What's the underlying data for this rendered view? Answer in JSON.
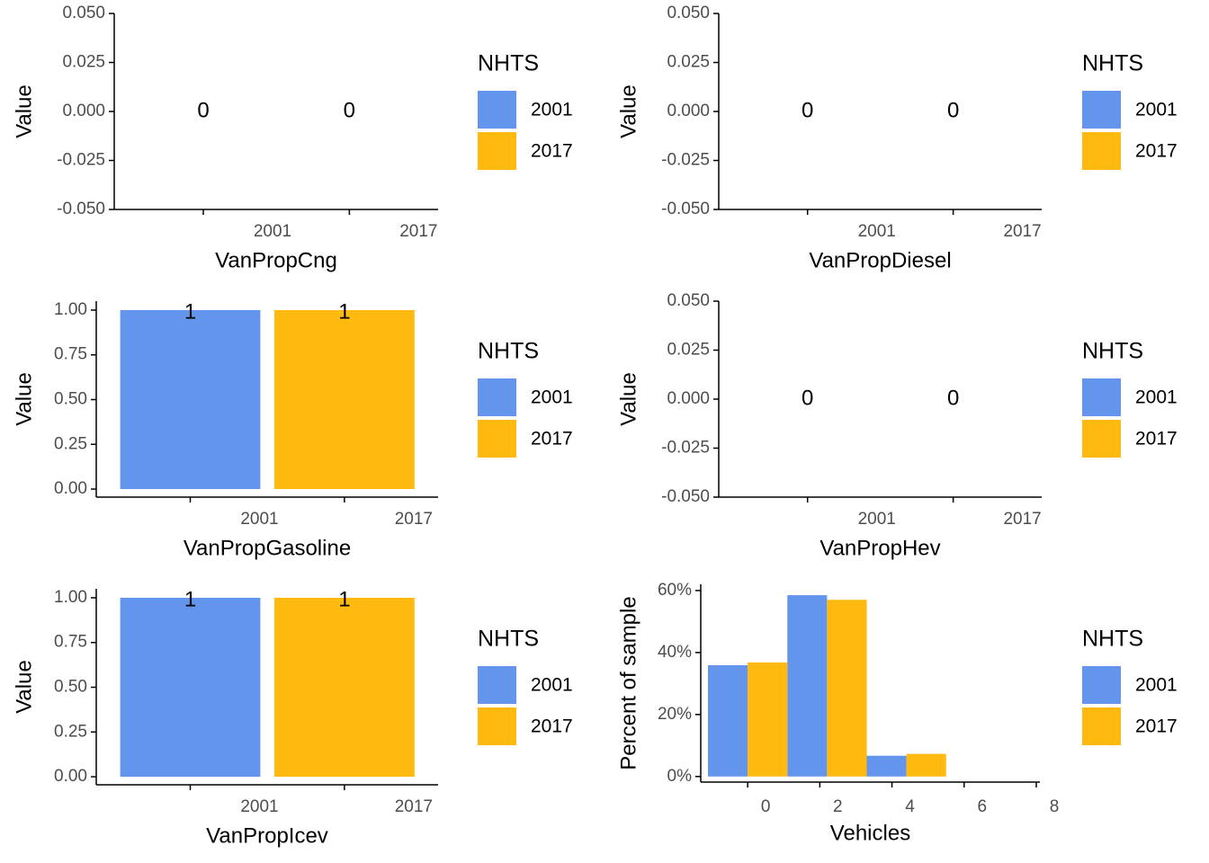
{
  "chart_data": [
    {
      "type": "bar",
      "x_label": "VanPropCng",
      "y_label": "Value",
      "legend_title": "NHTS",
      "categories": [
        "2001",
        "2017"
      ],
      "values": [
        0,
        0
      ],
      "colors": [
        "#6495ed",
        "#ffb90f"
      ],
      "ylim": [
        -0.05,
        0.05
      ],
      "yticks": [
        {
          "value": -0.05,
          "label": "-0.050"
        },
        {
          "value": -0.025,
          "label": "-0.025"
        },
        {
          "value": 0,
          "label": "0.000"
        },
        {
          "value": 0.025,
          "label": "0.025"
        },
        {
          "value": 0.05,
          "label": "0.050"
        }
      ]
    },
    {
      "type": "bar",
      "x_label": "VanPropDiesel",
      "y_label": "Value",
      "legend_title": "NHTS",
      "categories": [
        "2001",
        "2017"
      ],
      "values": [
        0,
        0
      ],
      "colors": [
        "#6495ed",
        "#ffb90f"
      ],
      "ylim": [
        -0.05,
        0.05
      ],
      "yticks": [
        {
          "value": -0.05,
          "label": "-0.050"
        },
        {
          "value": -0.025,
          "label": "-0.025"
        },
        {
          "value": 0,
          "label": "0.000"
        },
        {
          "value": 0.025,
          "label": "0.025"
        },
        {
          "value": 0.05,
          "label": "0.050"
        }
      ]
    },
    {
      "type": "bar",
      "x_label": "VanPropGasoline",
      "y_label": "Value",
      "legend_title": "NHTS",
      "categories": [
        "2001",
        "2017"
      ],
      "values": [
        1,
        1
      ],
      "colors": [
        "#6495ed",
        "#ffb90f"
      ],
      "ylim": [
        -0.045,
        1.05
      ],
      "yticks": [
        {
          "value": 0,
          "label": "0.00"
        },
        {
          "value": 0.25,
          "label": "0.25"
        },
        {
          "value": 0.5,
          "label": "0.50"
        },
        {
          "value": 0.75,
          "label": "0.75"
        },
        {
          "value": 1,
          "label": "1.00"
        }
      ]
    },
    {
      "type": "bar",
      "x_label": "VanPropHev",
      "y_label": "Value",
      "legend_title": "NHTS",
      "categories": [
        "2001",
        "2017"
      ],
      "values": [
        0,
        0
      ],
      "colors": [
        "#6495ed",
        "#ffb90f"
      ],
      "ylim": [
        -0.05,
        0.05
      ],
      "yticks": [
        {
          "value": -0.05,
          "label": "-0.050"
        },
        {
          "value": -0.025,
          "label": "-0.025"
        },
        {
          "value": 0,
          "label": "0.000"
        },
        {
          "value": 0.025,
          "label": "0.025"
        },
        {
          "value": 0.05,
          "label": "0.050"
        }
      ]
    },
    {
      "type": "bar",
      "x_label": "VanPropIcev",
      "y_label": "Value",
      "legend_title": "NHTS",
      "categories": [
        "2001",
        "2017"
      ],
      "values": [
        1,
        1
      ],
      "colors": [
        "#6495ed",
        "#ffb90f"
      ],
      "ylim": [
        -0.045,
        1.05
      ],
      "yticks": [
        {
          "value": 0,
          "label": "0.00"
        },
        {
          "value": 0.25,
          "label": "0.25"
        },
        {
          "value": 0.5,
          "label": "0.50"
        },
        {
          "value": 0.75,
          "label": "0.75"
        },
        {
          "value": 1,
          "label": "1.00"
        }
      ]
    },
    {
      "type": "histogram",
      "x_label": "Vehicles",
      "y_label": "Percent of sample",
      "legend_title": "NHTS",
      "bins": [
        -1.1,
        1.1,
        3.3,
        5.5
      ],
      "series": [
        {
          "name": "2001",
          "color": "#6495ed",
          "values": [
            35.9,
            58.5,
            6.7
          ]
        },
        {
          "name": "2017",
          "color": "#ffb90f",
          "values": [
            36.8,
            57.0,
            7.3
          ]
        }
      ],
      "xlim": [
        -1.3,
        8.1
      ],
      "xticks": [
        0,
        2,
        4,
        6,
        8
      ],
      "ylim": [
        -1.8,
        62
      ],
      "yticks": [
        {
          "value": 0,
          "label": "0%"
        },
        {
          "value": 20,
          "label": "20%"
        },
        {
          "value": 40,
          "label": "40%"
        },
        {
          "value": 60,
          "label": "60%"
        }
      ]
    }
  ]
}
